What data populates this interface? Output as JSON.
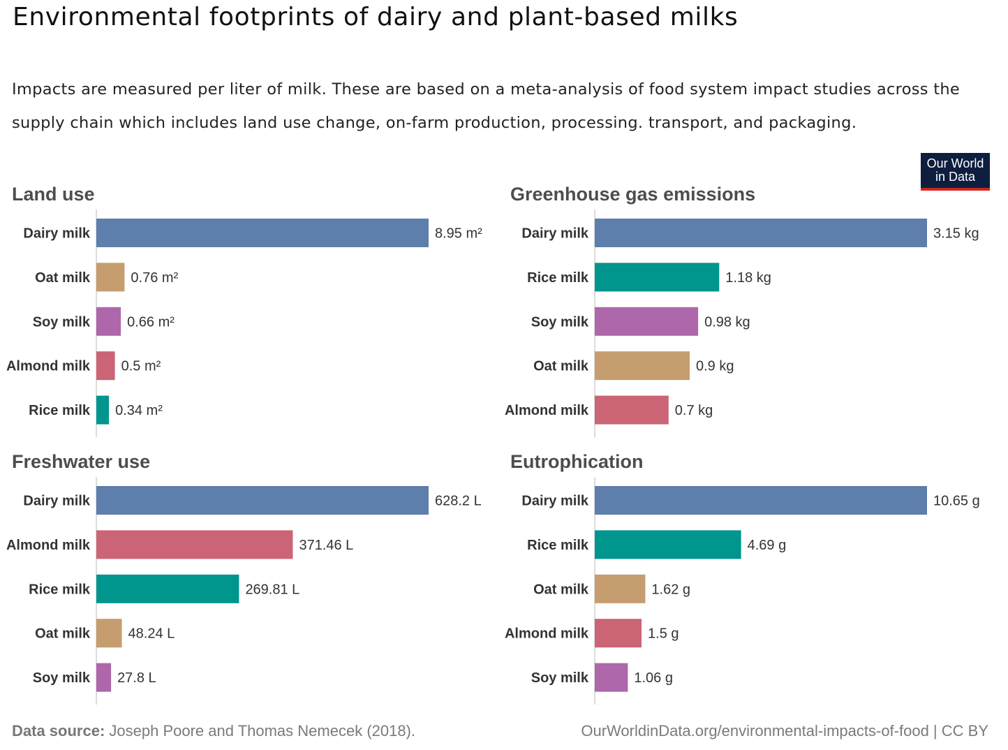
{
  "title": "Environmental footprints of dairy and plant-based milks",
  "subtitle": "Impacts are measured per liter of milk. These are based on a meta-analysis of food system impact studies across the supply chain which includes land use change, on-farm production, processing. transport, and packaging.",
  "logo": {
    "line1": "Our World",
    "line2": "in Data"
  },
  "colors": {
    "Dairy milk": "#5e7eab",
    "Oat milk": "#c59d6e",
    "Soy milk": "#ad67aa",
    "Almond milk": "#cb6475",
    "Rice milk": "#00958d"
  },
  "chart_data": [
    {
      "type": "bar",
      "title": "Land use",
      "categories": [
        "Dairy milk",
        "Oat milk",
        "Soy milk",
        "Almond milk",
        "Rice milk"
      ],
      "values": [
        8.95,
        0.76,
        0.66,
        0.5,
        0.34
      ],
      "value_labels": [
        "8.95 m²",
        "0.76 m²",
        "0.66 m²",
        "0.5 m²",
        "0.34 m²"
      ]
    },
    {
      "type": "bar",
      "title": "Greenhouse gas emissions",
      "categories": [
        "Dairy milk",
        "Rice milk",
        "Soy milk",
        "Oat milk",
        "Almond milk"
      ],
      "values": [
        3.15,
        1.18,
        0.98,
        0.9,
        0.7
      ],
      "value_labels": [
        "3.15 kg",
        "1.18 kg",
        "0.98 kg",
        "0.9 kg",
        "0.7 kg"
      ]
    },
    {
      "type": "bar",
      "title": "Freshwater use",
      "categories": [
        "Dairy milk",
        "Almond milk",
        "Rice milk",
        "Oat milk",
        "Soy milk"
      ],
      "values": [
        628.2,
        371.46,
        269.81,
        48.24,
        27.8
      ],
      "value_labels": [
        "628.2 L",
        "371.46 L",
        "269.81 L",
        "48.24 L",
        "27.8 L"
      ]
    },
    {
      "type": "bar",
      "title": "Eutrophication",
      "categories": [
        "Dairy milk",
        "Rice milk",
        "Oat milk",
        "Almond milk",
        "Soy milk"
      ],
      "values": [
        10.65,
        4.69,
        1.62,
        1.5,
        1.06
      ],
      "value_labels": [
        "10.65 g",
        "4.69 g",
        "1.62 g",
        "1.5 g",
        "1.06 g"
      ]
    }
  ],
  "footer": {
    "source_label": "Data source:",
    "source_text": "Joseph Poore and Thomas Nemecek (2018).",
    "url": "OurWorldinData.org/environmental-impacts-of-food | CC BY"
  }
}
